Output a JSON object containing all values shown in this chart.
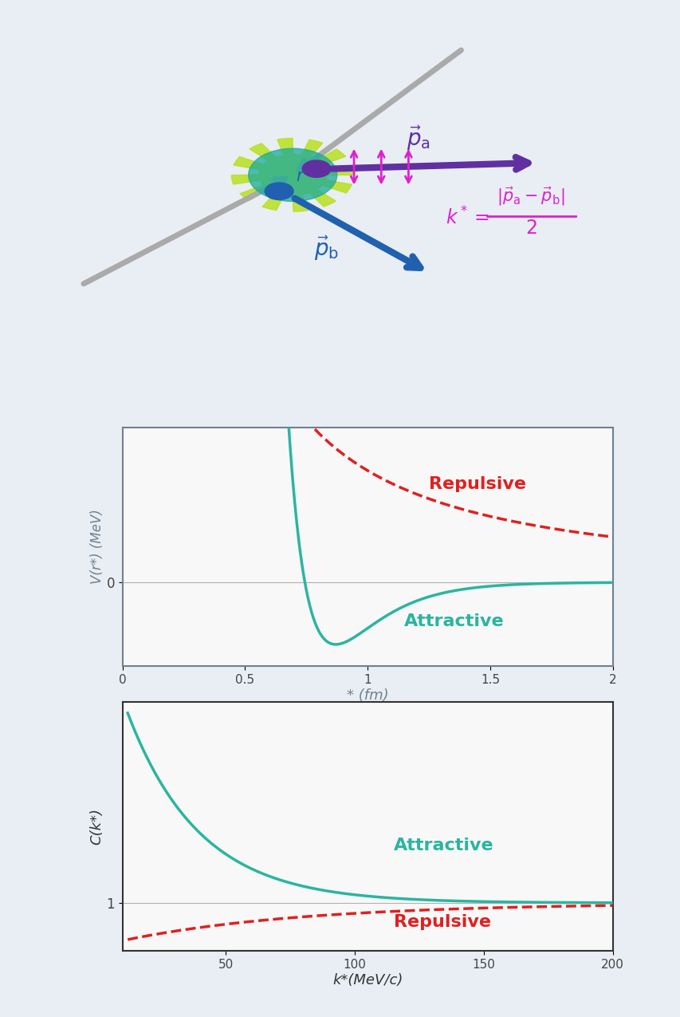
{
  "bg_color": "#e8eef4",
  "panel_bg": "#f8f8f8",
  "teal_color": "#2ab5a0",
  "red_color": "#e02020",
  "gray_color": "#aaaaaa",
  "purple_color": "#6030a0",
  "blue_color": "#2060b0",
  "magenta_color": "#e020d0",
  "plot1_xlabel": "* (fm)",
  "plot1_ylabel": "V(r*) (MeV)",
  "plot1_xlim": [
    0,
    2.0
  ],
  "plot1_xticks": [
    0,
    0.5,
    1.0,
    1.5,
    2.0
  ],
  "plot1_xtick_labels": [
    "0",
    "0.5",
    "1",
    "1.5",
    "2"
  ],
  "plot1_repulsive_label": "Repulsive",
  "plot1_attractive_label": "Attractive",
  "plot2_xlabel": "k*(MeV/c)",
  "plot2_ylabel": "C(k*)",
  "plot2_xlim": [
    10,
    200
  ],
  "plot2_xticks": [
    50,
    100,
    150,
    200
  ],
  "plot2_xtick_labels": [
    "50",
    "100",
    "150",
    "200"
  ],
  "plot2_repulsive_label": "Repulsive",
  "plot2_attractive_label": "Attractive"
}
